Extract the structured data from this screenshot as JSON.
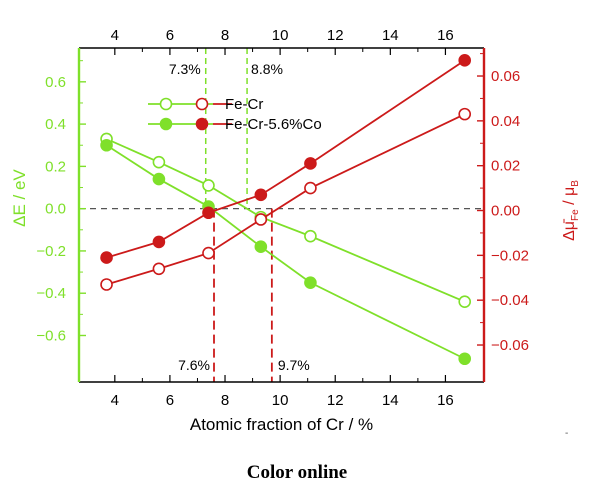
{
  "chart_data": {
    "type": "line",
    "caption": "Color online",
    "stray_mark": "-",
    "xlabel": "Atomic fraction of Cr / %",
    "xlim": [
      2.7,
      17.4
    ],
    "xticks": [
      4,
      6,
      8,
      10,
      12,
      14,
      16
    ],
    "xtick_labels": [
      "4",
      "6",
      "8",
      "10",
      "12",
      "14",
      "16"
    ],
    "ylabel_left": "ΔE / eV",
    "ylim_left": [
      -0.82,
      0.76
    ],
    "yticks_left": [
      -0.6,
      -0.4,
      -0.2,
      0.0,
      0.2,
      0.4,
      0.6
    ],
    "ytick_labels_left": [
      "−0.6",
      "−0.4",
      "−0.2",
      "0.0",
      "0.2",
      "0.4",
      "0.6"
    ],
    "ylabel_right": "Δμ̄Fe / μB",
    "ylabel_right_parts": {
      "delta": "Δ",
      "mu": "μ̄",
      "sub": "Fe",
      "slash": " / ",
      "mu2": "μ",
      "sub2": "B"
    },
    "ylim_right": [
      -0.0765,
      0.0725
    ],
    "yticks_right": [
      -0.06,
      -0.04,
      -0.02,
      0.0,
      0.02,
      0.04,
      0.06
    ],
    "ytick_labels_right": [
      "−0.06",
      "−0.04",
      "−0.02",
      "0.00",
      "0.02",
      "0.04",
      "0.06"
    ],
    "colors": {
      "green": "#7fe02a",
      "red": "#cc1a1a",
      "zero": "#555555"
    },
    "legend": {
      "placement": "upper-center",
      "entries": [
        {
          "label": "Fe-Cr",
          "marker": "open"
        },
        {
          "label": "Fe-Cr-5.6%Co",
          "marker": "filled"
        }
      ]
    },
    "series": [
      {
        "axis": "left",
        "color": "green",
        "marker": "open",
        "x": [
          3.7,
          5.6,
          7.4,
          9.3,
          11.1,
          16.7
        ],
        "y": [
          0.33,
          0.22,
          0.11,
          -0.04,
          -0.13,
          -0.44
        ]
      },
      {
        "axis": "left",
        "color": "green",
        "marker": "filled",
        "x": [
          3.7,
          5.6,
          7.4,
          9.3,
          11.1,
          16.7
        ],
        "y": [
          0.3,
          0.14,
          0.01,
          -0.18,
          -0.35,
          -0.71
        ]
      },
      {
        "axis": "right",
        "color": "red",
        "marker": "open",
        "x": [
          3.7,
          5.6,
          7.4,
          9.3,
          11.1,
          16.7
        ],
        "y": [
          -0.033,
          -0.026,
          -0.019,
          -0.004,
          0.01,
          0.043
        ]
      },
      {
        "axis": "right",
        "color": "red",
        "marker": "filled",
        "x": [
          3.7,
          5.6,
          7.4,
          9.3,
          11.1,
          16.7
        ],
        "y": [
          -0.021,
          -0.014,
          -0.001,
          0.007,
          0.021,
          0.067
        ]
      }
    ],
    "annotations": [
      {
        "text": "7.3%",
        "x": 7.3,
        "color": "green",
        "position": "top"
      },
      {
        "text": "8.8%",
        "x": 8.8,
        "color": "green",
        "position": "top"
      },
      {
        "text": "7.6%",
        "x": 7.6,
        "color": "red",
        "position": "bottom"
      },
      {
        "text": "9.7%",
        "x": 9.7,
        "color": "red",
        "position": "bottom"
      }
    ]
  }
}
